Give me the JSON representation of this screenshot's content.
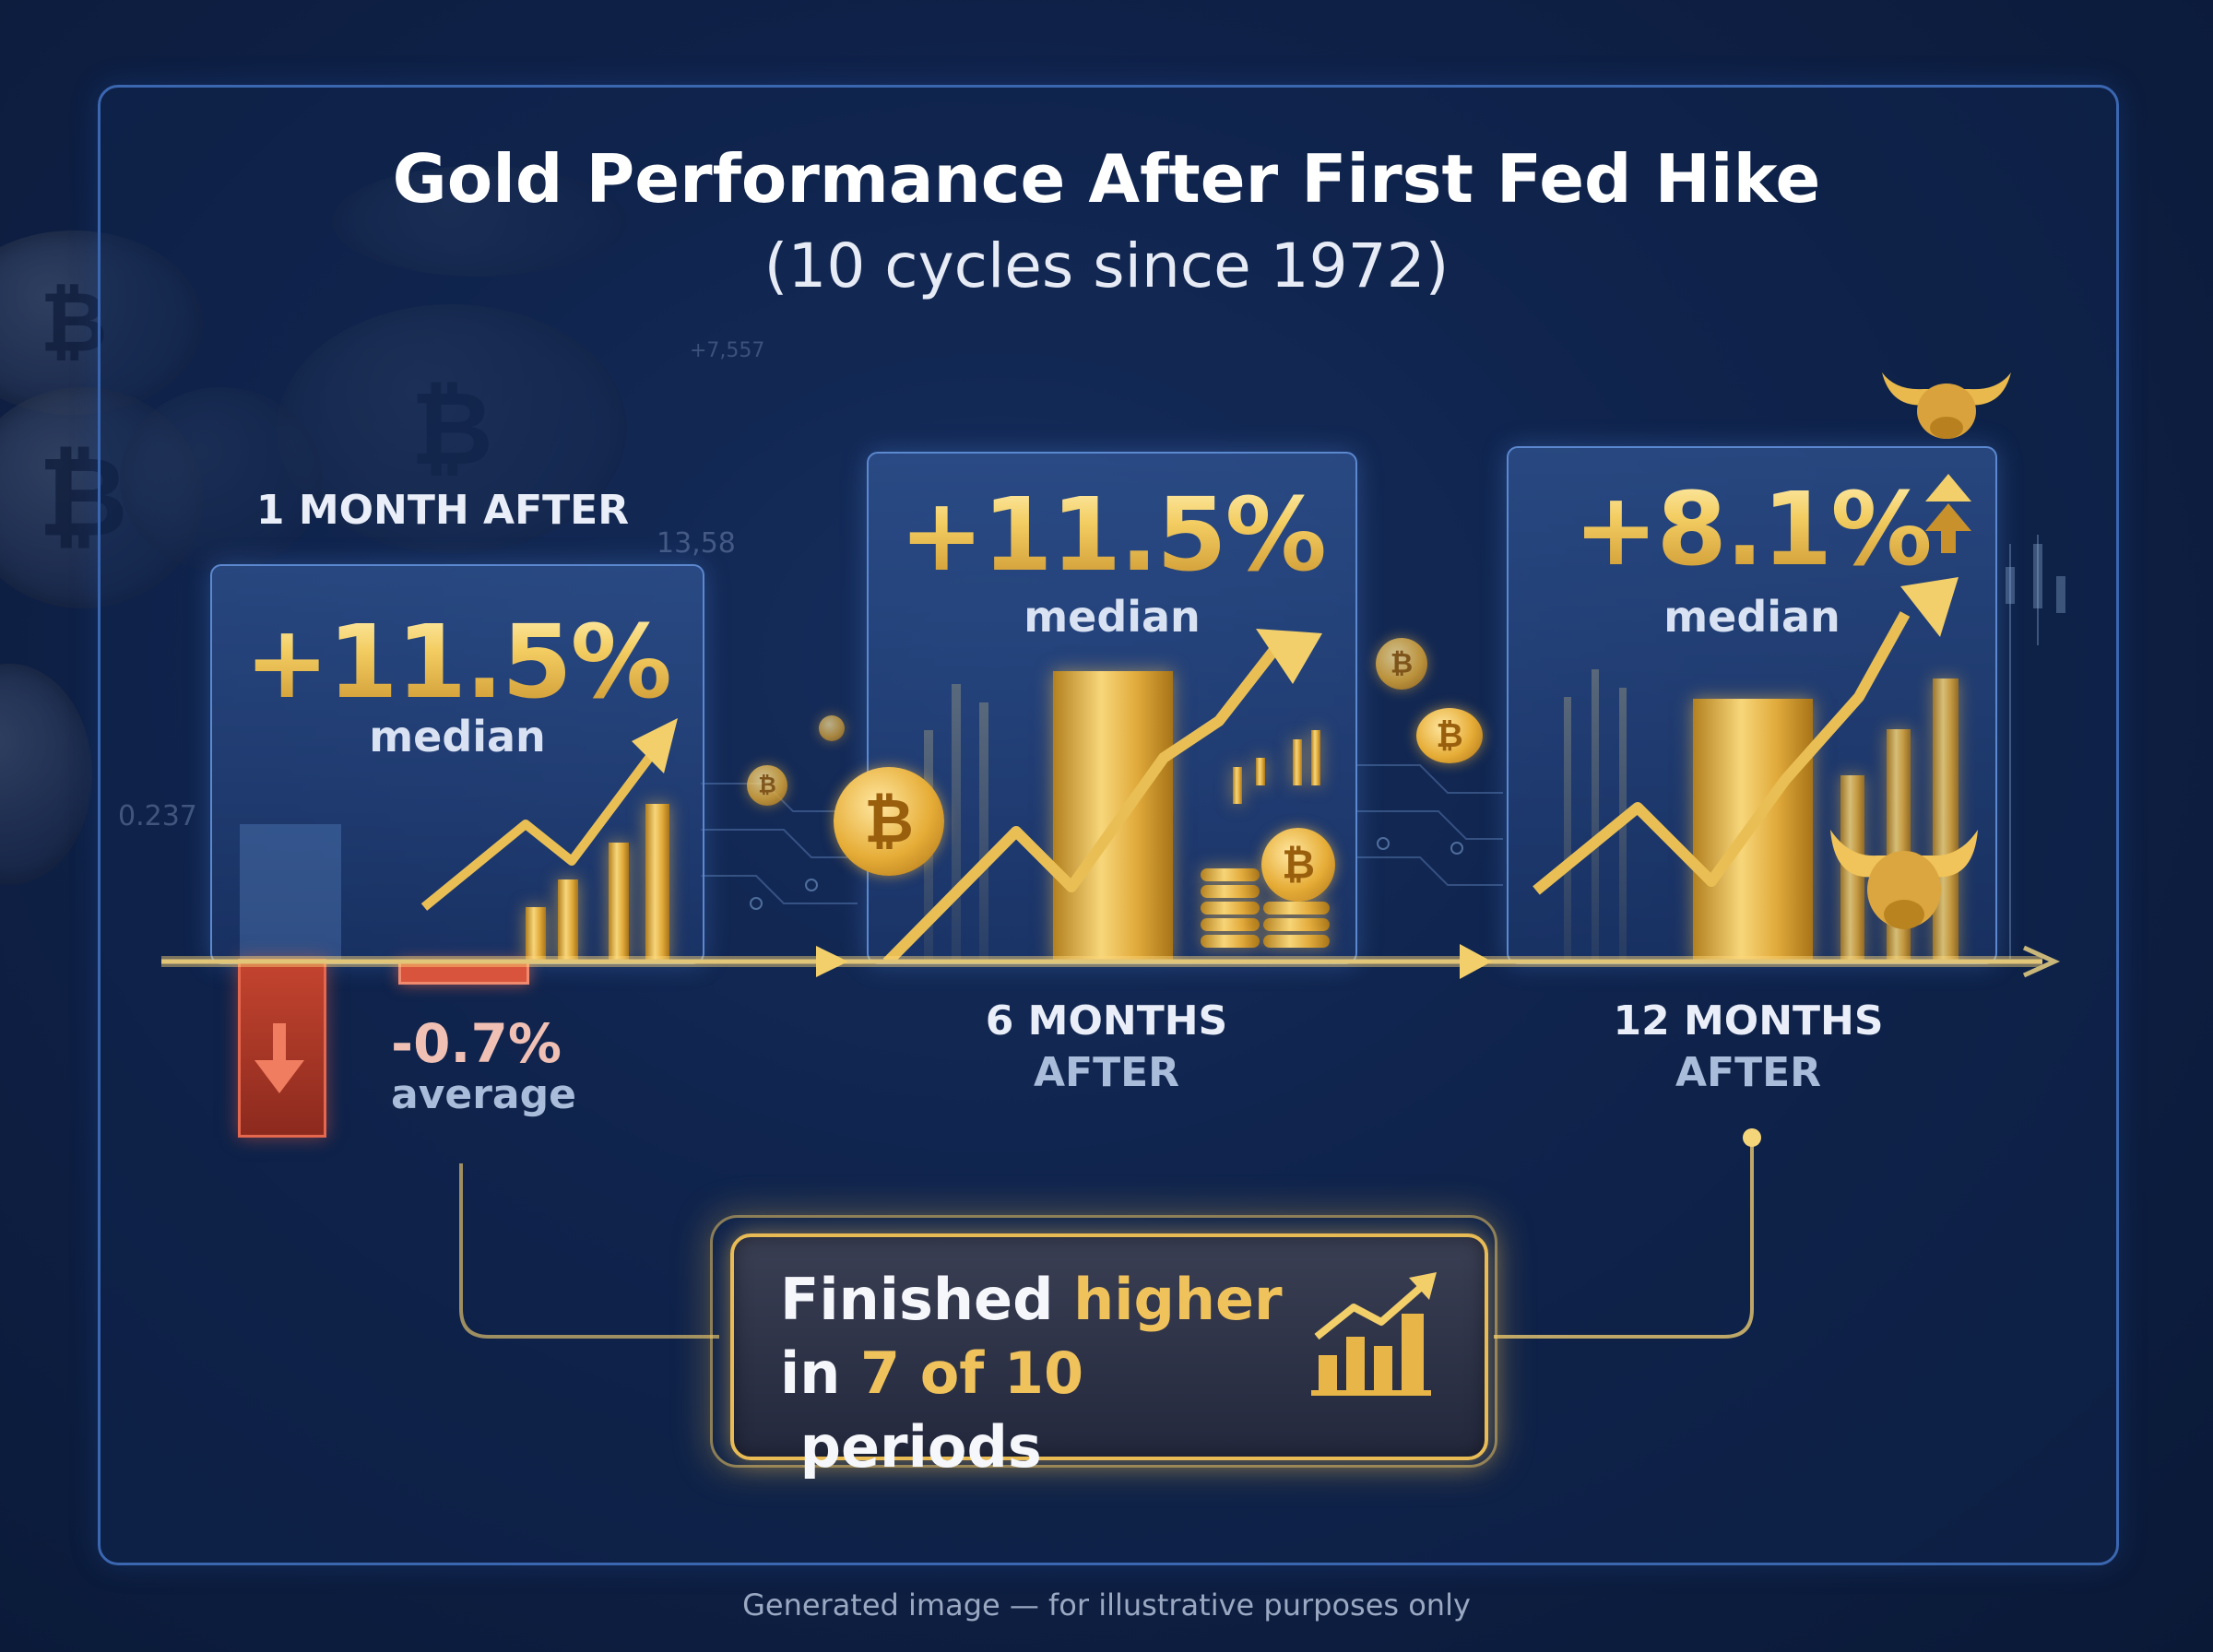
{
  "header": {
    "title": "Gold Performance After First Fed Hike",
    "subtitle": "(10 cycles since 1972)"
  },
  "periods": [
    {
      "label": "1 MONTH AFTER",
      "median": "+11.5%",
      "median_caption": "median",
      "average": "-0.7%",
      "average_caption": "average"
    },
    {
      "label_line1": "6 MONTHS",
      "label_line2": "AFTER",
      "median": "+11.5%",
      "median_caption": "median"
    },
    {
      "label_line1": "12 MONTHS",
      "label_line2": "AFTER",
      "median": "+8.1%",
      "median_caption": "median"
    }
  ],
  "summary": {
    "part1": "Finished ",
    "highlight1": "higher",
    "part2": "in ",
    "highlight2": "7 of 10",
    "part3": " periods"
  },
  "background_numbers": [
    "13,58",
    "0.237",
    "+7,557"
  ],
  "coin_symbol": "₿",
  "footnote": "Generated image — for illustrative purposes only",
  "colors": {
    "gold": "#f3cd62",
    "negative": "#d9543c",
    "accent_blue": "#3b66b0",
    "background": "#0f2148"
  }
}
